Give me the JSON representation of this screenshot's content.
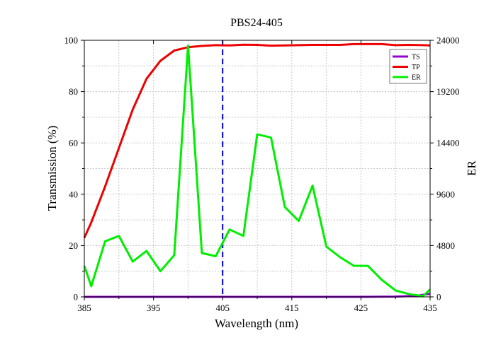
{
  "chart_data": {
    "type": "line",
    "title": "PBS24-405",
    "xlabel": "Wavelength (nm)",
    "ylabel_left": "Transmission (%)",
    "ylabel_right": "ER",
    "xlim": [
      385,
      435
    ],
    "ylim_left": [
      0,
      100
    ],
    "ylim_right": [
      0,
      24000
    ],
    "x_ticks": [
      385,
      395,
      405,
      415,
      425,
      435
    ],
    "y_ticks_left": [
      0,
      20,
      40,
      60,
      80,
      100
    ],
    "y_ticks_right": [
      0,
      4800,
      9600,
      14400,
      19200,
      24000
    ],
    "grid": true,
    "legend_position": "top-right",
    "reference_line": {
      "x": 405,
      "color": "#0000dd",
      "style": "dashed"
    },
    "series": [
      {
        "name": "TS",
        "axis": "left",
        "color": "#9400d3",
        "x": [
          385,
          395,
          405,
          415,
          425,
          430,
          433,
          435
        ],
        "y": [
          0,
          0,
          0,
          0,
          0,
          0.1,
          0.4,
          1.2
        ]
      },
      {
        "name": "TP",
        "axis": "left",
        "color": "#ee0000",
        "x": [
          385,
          386,
          388,
          390,
          392,
          394,
          396,
          398,
          400,
          402,
          404,
          406,
          408,
          410,
          412,
          414,
          416,
          418,
          420,
          422,
          424,
          426,
          428,
          430,
          432,
          434,
          435
        ],
        "y": [
          23,
          29,
          43,
          58,
          73,
          85,
          92,
          96,
          97.3,
          97.8,
          98.1,
          98.0,
          98.3,
          98.2,
          97.9,
          98.0,
          98.1,
          98.2,
          98.2,
          98.2,
          98.5,
          98.5,
          98.5,
          98.1,
          98.2,
          98.1,
          98.0
        ]
      },
      {
        "name": "ER",
        "axis": "right",
        "color": "#00ee00",
        "x": [
          385,
          386,
          388,
          390,
          392,
          394,
          396,
          398,
          400,
          402,
          404,
          406,
          408,
          410,
          412,
          414,
          416,
          418,
          420,
          422,
          424,
          426,
          428,
          430,
          432,
          434,
          435
        ],
        "y": [
          2900,
          1000,
          5200,
          5700,
          3300,
          4300,
          2400,
          3900,
          23500,
          4100,
          3800,
          6300,
          5700,
          15200,
          14900,
          8400,
          7100,
          10400,
          4700,
          3700,
          2900,
          2900,
          1600,
          600,
          250,
          80,
          700
        ]
      }
    ]
  }
}
